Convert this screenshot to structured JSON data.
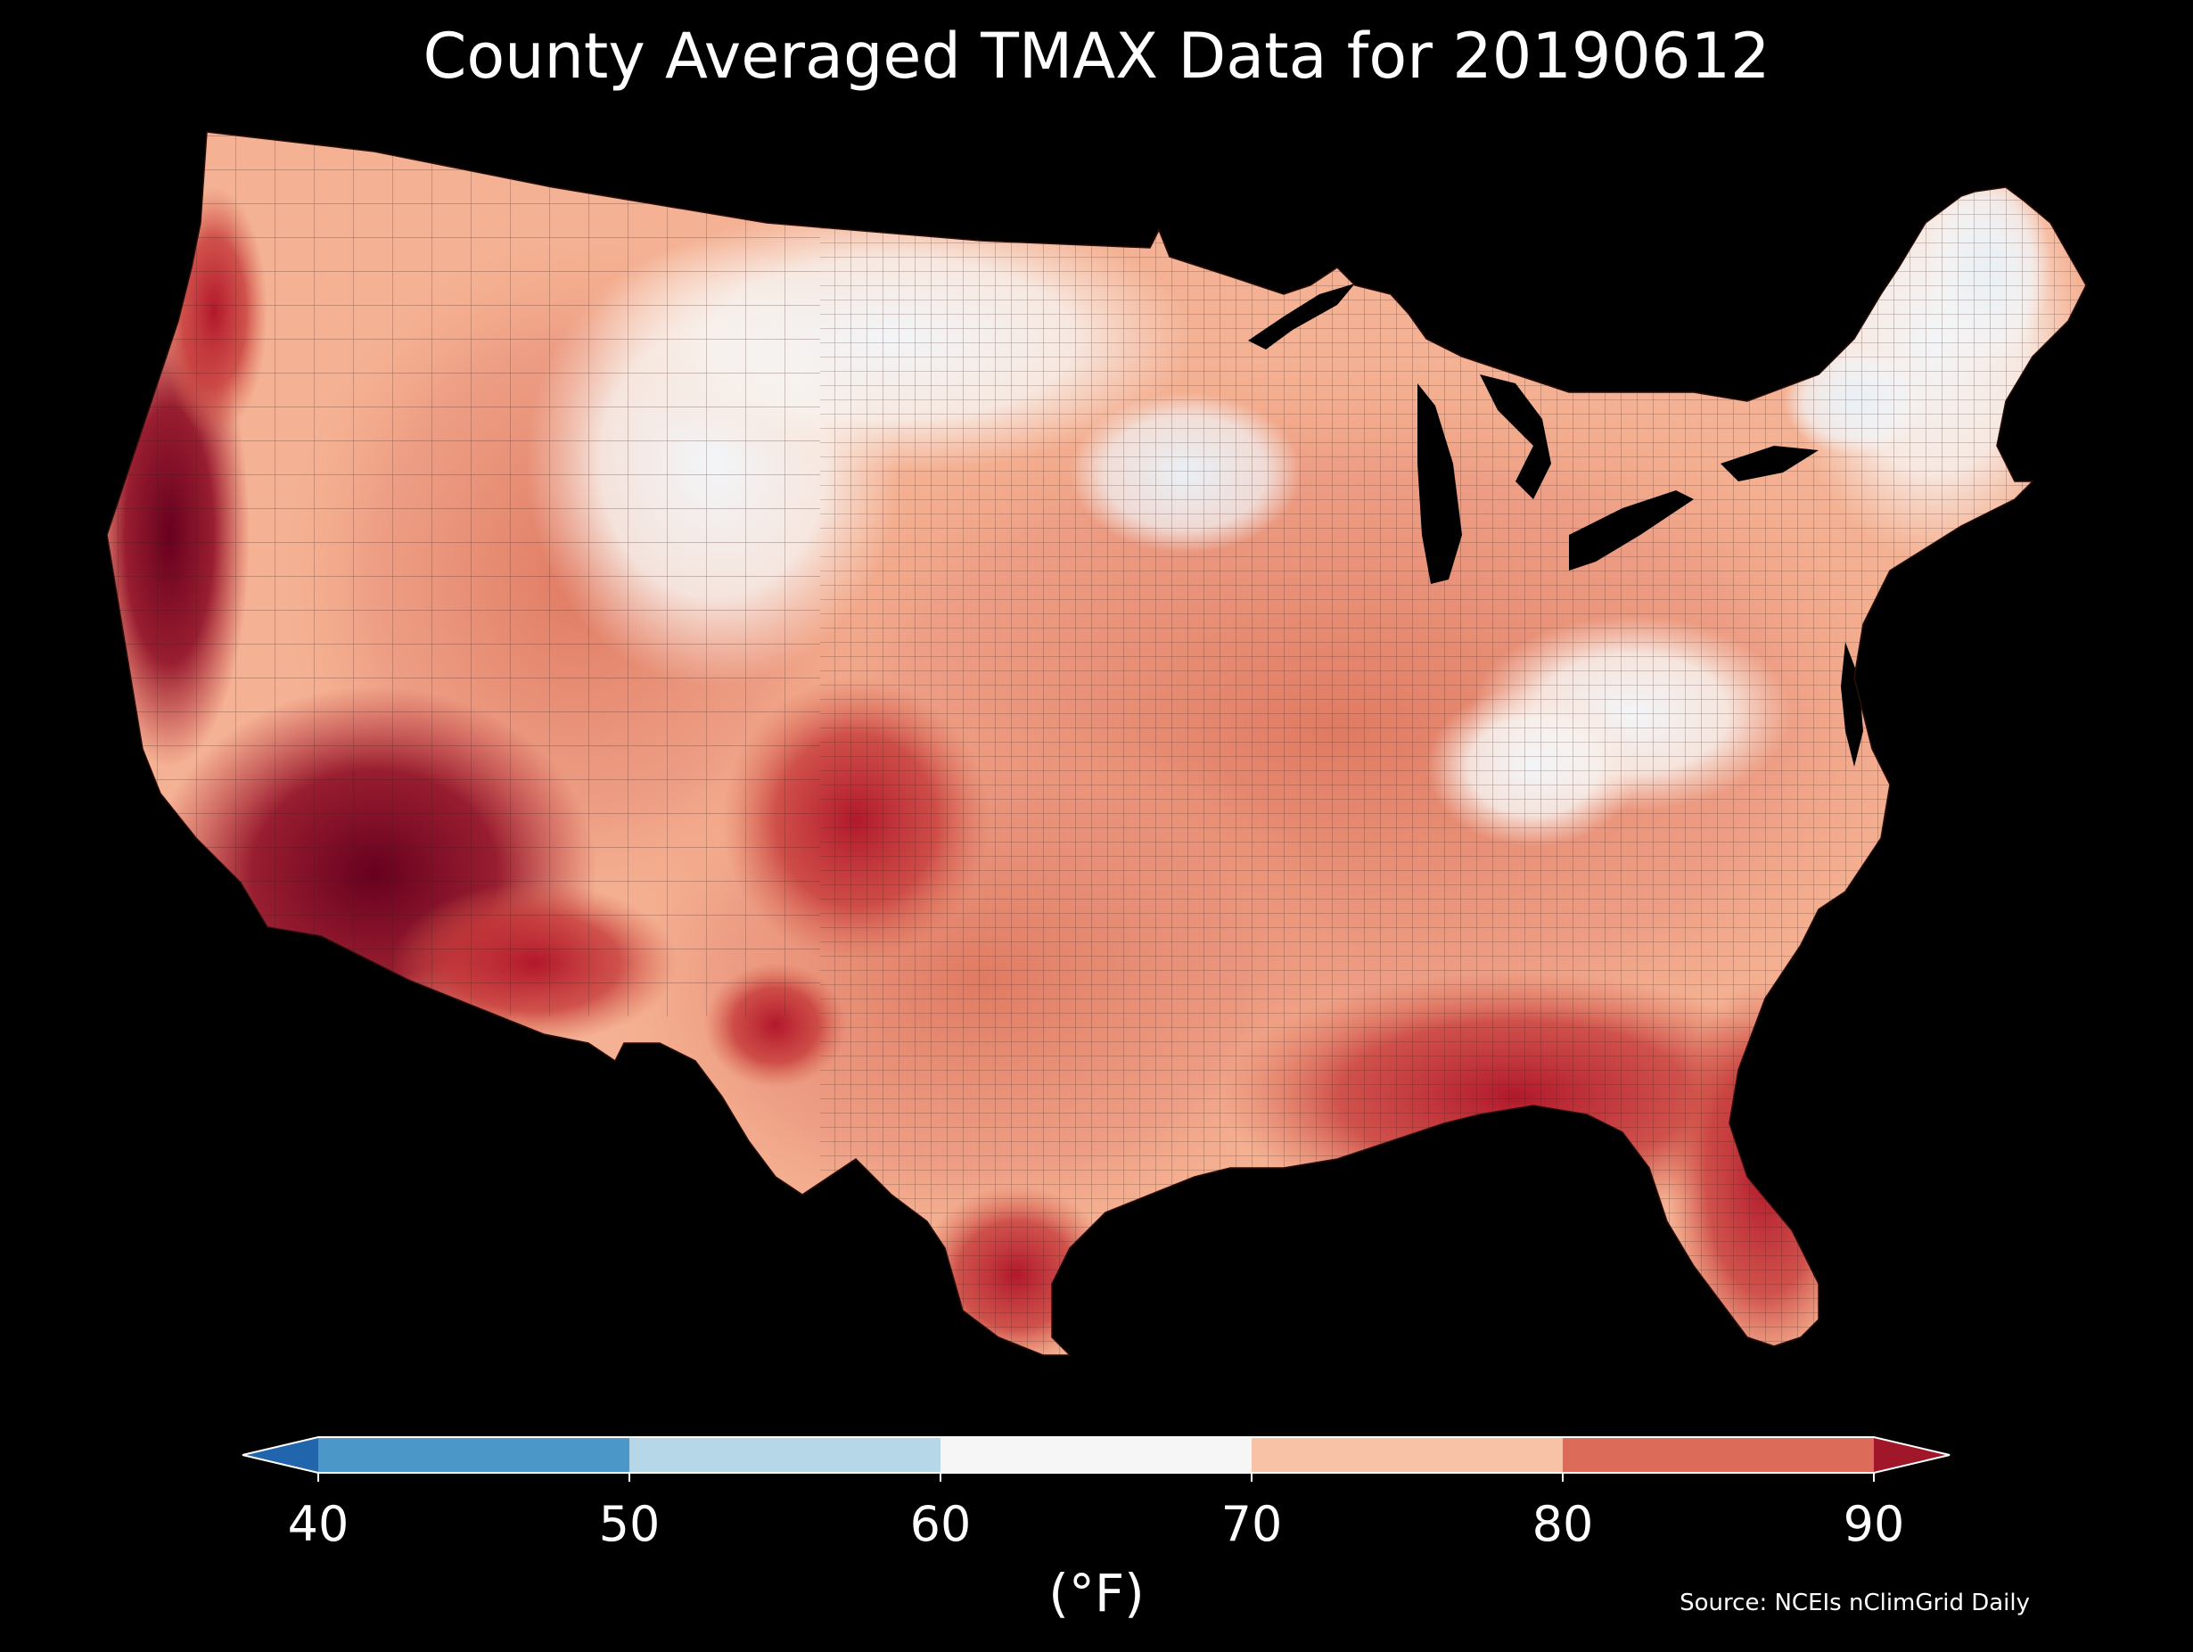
{
  "title": "County Averaged TMAX Data for 20190612",
  "colorbar": {
    "unit_label": "(°F)",
    "ticks": [
      "40",
      "50",
      "60",
      "70",
      "80",
      "90"
    ],
    "bins": [
      {
        "from": 40,
        "to": 50,
        "color": "#4b98c8"
      },
      {
        "from": 50,
        "to": 60,
        "color": "#b5d7e8"
      },
      {
        "from": 60,
        "to": 70,
        "color": "#f6f6f6"
      },
      {
        "from": 70,
        "to": 80,
        "color": "#f8c2a6"
      },
      {
        "from": 80,
        "to": 90,
        "color": "#dc6b59"
      }
    ],
    "under_color": "#2166ac",
    "over_color": "#a0172a",
    "range": [
      40,
      90
    ],
    "extend": "both"
  },
  "source_note": "Source: NCEIs nClimGrid Daily",
  "map": {
    "region": "contiguous United States",
    "variable": "TMAX",
    "aggregation": "county average",
    "background_color": "#000000",
    "county_border_color": "#3a1a14"
  }
}
